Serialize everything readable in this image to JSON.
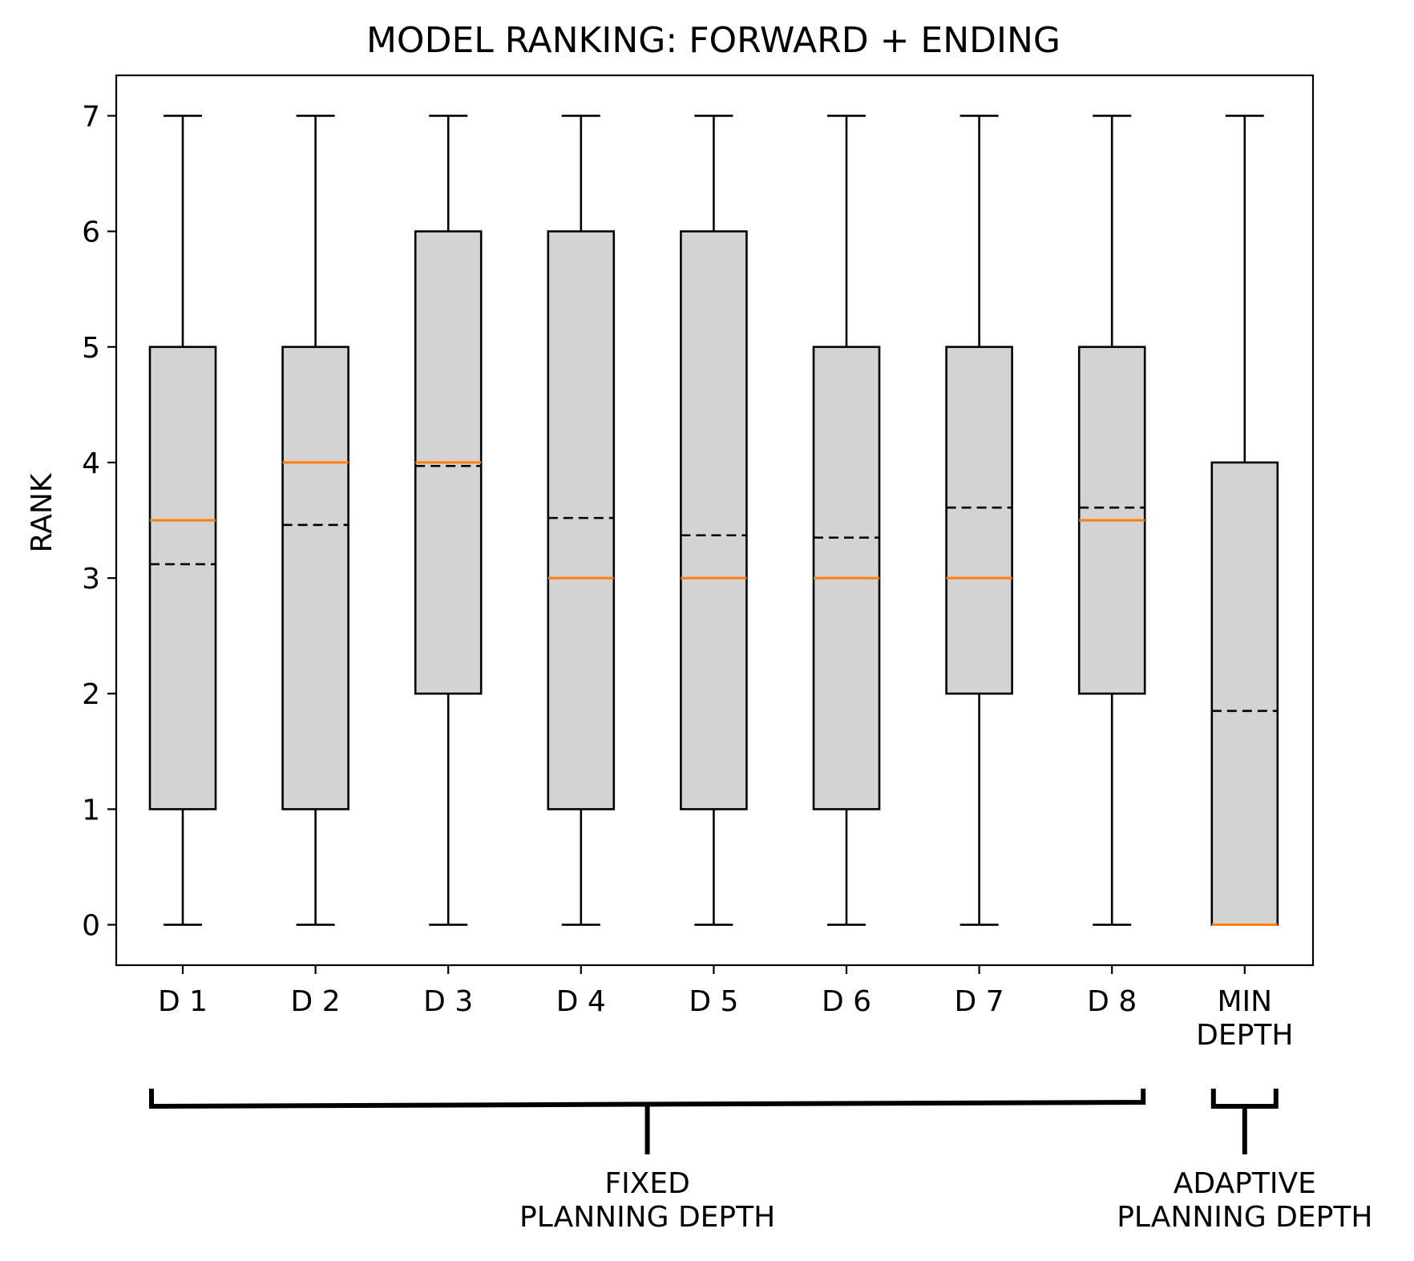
{
  "chart_data": {
    "type": "box",
    "title": "MODEL RANKING: FORWARD + ENDING",
    "xlabel": "",
    "ylabel": "RANK",
    "ylim": [
      -0.35,
      7.35
    ],
    "yticks": [
      "0",
      "1",
      "2",
      "3",
      "4",
      "5",
      "6",
      "7"
    ],
    "categories": [
      "D 1",
      "D 2",
      "D 3",
      "D 4",
      "D 5",
      "D 6",
      "D 7",
      "D 8",
      "MIN\nDEPTH"
    ],
    "boxes": [
      {
        "whisker_low": 0,
        "q1": 1,
        "median": 3.5,
        "mean": 3.12,
        "q3": 5,
        "whisker_high": 7
      },
      {
        "whisker_low": 0,
        "q1": 1,
        "median": 4.0,
        "mean": 3.46,
        "q3": 5,
        "whisker_high": 7
      },
      {
        "whisker_low": 0,
        "q1": 2,
        "median": 4.0,
        "mean": 3.97,
        "q3": 6,
        "whisker_high": 7
      },
      {
        "whisker_low": 0,
        "q1": 1,
        "median": 3.0,
        "mean": 3.52,
        "q3": 6,
        "whisker_high": 7
      },
      {
        "whisker_low": 0,
        "q1": 1,
        "median": 3.0,
        "mean": 3.37,
        "q3": 6,
        "whisker_high": 7
      },
      {
        "whisker_low": 0,
        "q1": 1,
        "median": 3.0,
        "mean": 3.35,
        "q3": 5,
        "whisker_high": 7
      },
      {
        "whisker_low": 0,
        "q1": 2,
        "median": 3.0,
        "mean": 3.61,
        "q3": 5,
        "whisker_high": 7
      },
      {
        "whisker_low": 0,
        "q1": 2,
        "median": 3.5,
        "mean": 3.61,
        "q3": 5,
        "whisker_high": 7
      },
      {
        "whisker_low": 0,
        "q1": 0,
        "median": 0.0,
        "mean": 1.85,
        "q3": 4,
        "whisker_high": 7
      }
    ],
    "groups": [
      {
        "label": "FIXED\nPLANNING DEPTH",
        "from_category": 0,
        "to_category": 7
      },
      {
        "label": "ADAPTIVE\nPLANNING DEPTH",
        "from_category": 8,
        "to_category": 8
      }
    ],
    "colors": {
      "box_fill": "#d3d3d3",
      "median": "#ff7f0e",
      "mean": "#000000",
      "lines": "#000000"
    },
    "grid": false,
    "legend": "none"
  }
}
